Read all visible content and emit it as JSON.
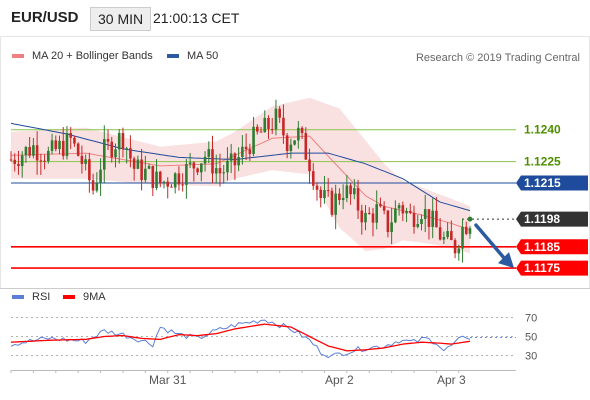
{
  "header": {
    "symbol": "EUR/USD",
    "timeframe": "30 MIN",
    "time": "21:00:13 CET"
  },
  "legend": {
    "bollinger": {
      "label": "MA 20 + Bollinger Bands",
      "color": "#f08080"
    },
    "ma50": {
      "label": "MA 50",
      "color": "#2c5aa0"
    },
    "research": "Research © 2019 Trading Central"
  },
  "rsi_legend": {
    "rsi": {
      "label": "RSI",
      "color": "#5b7fd6"
    },
    "ma": {
      "label": "9MA",
      "color": "#ff0000"
    }
  },
  "colors": {
    "up_candle": "#2e7d32",
    "down_candle": "#c62828",
    "support": "#ff0000",
    "pivot": "#1e4b9b",
    "resistance": "#8bc34a",
    "last_price_badge": "#333333",
    "arrow": "#2c5aa0"
  },
  "chart_data": [
    {
      "type": "candlestick",
      "title": "EUR/USD",
      "ylim": [
        1.1168,
        1.1269
      ],
      "x_ticks": [
        "Mar 31",
        "Apr 2",
        "Apr 3"
      ],
      "levels": [
        {
          "value": 1.124,
          "label": "1.1240",
          "kind": "resistance"
        },
        {
          "value": 1.1225,
          "label": "1.1225",
          "kind": "resistance"
        },
        {
          "value": 1.1215,
          "label": "1.1215",
          "kind": "pivot"
        },
        {
          "value": 1.1198,
          "label": "1.1198",
          "kind": "last"
        },
        {
          "value": 1.1185,
          "label": "1.1185",
          "kind": "support"
        },
        {
          "value": 1.1175,
          "label": "1.1175",
          "kind": "support"
        }
      ],
      "arrow_target": 1.1175,
      "last_price": 1.1198,
      "anchors": [
        [
          0,
          1.1226
        ],
        [
          6,
          1.1232
        ],
        [
          10,
          1.1228
        ],
        [
          16,
          1.1235
        ],
        [
          19,
          1.1225
        ],
        [
          22,
          1.1212
        ],
        [
          25,
          1.123
        ],
        [
          30,
          1.1237
        ],
        [
          33,
          1.1222
        ],
        [
          37,
          1.1219
        ],
        [
          40,
          1.1215
        ],
        [
          44,
          1.1218
        ],
        [
          48,
          1.1222
        ],
        [
          52,
          1.1228
        ],
        [
          56,
          1.122
        ],
        [
          60,
          1.1224
        ],
        [
          64,
          1.1234
        ],
        [
          68,
          1.124
        ],
        [
          71,
          1.1245
        ],
        [
          74,
          1.1235
        ],
        [
          77,
          1.1238
        ],
        [
          80,
          1.1225
        ],
        [
          83,
          1.1208
        ],
        [
          86,
          1.1205
        ],
        [
          89,
          1.1212
        ],
        [
          92,
          1.1207
        ],
        [
          95,
          1.1198
        ],
        [
          98,
          1.1202
        ],
        [
          101,
          1.1195
        ],
        [
          104,
          1.1205
        ],
        [
          107,
          1.1199
        ],
        [
          110,
          1.1203
        ],
        [
          113,
          1.1196
        ],
        [
          116,
          1.1188
        ],
        [
          119,
          1.1185
        ],
        [
          121,
          1.1194
        ],
        [
          123,
          1.1198
        ]
      ],
      "ma20_anchors": [
        [
          0,
          1.1228
        ],
        [
          20,
          1.1229
        ],
        [
          40,
          1.1223
        ],
        [
          55,
          1.1224
        ],
        [
          70,
          1.1236
        ],
        [
          80,
          1.1237
        ],
        [
          88,
          1.1222
        ],
        [
          95,
          1.1209
        ],
        [
          100,
          1.1204
        ],
        [
          110,
          1.12
        ],
        [
          118,
          1.1196
        ],
        [
          123,
          1.1193
        ]
      ],
      "ma50_anchors": [
        [
          0,
          1.1243
        ],
        [
          15,
          1.1238
        ],
        [
          30,
          1.1231
        ],
        [
          45,
          1.1227
        ],
        [
          60,
          1.1226
        ],
        [
          75,
          1.1229
        ],
        [
          85,
          1.1229
        ],
        [
          95,
          1.1224
        ],
        [
          105,
          1.1217
        ],
        [
          115,
          1.1206
        ],
        [
          123,
          1.1202
        ]
      ],
      "bb_width_anchors": [
        [
          0,
          0.0011
        ],
        [
          20,
          0.0012
        ],
        [
          40,
          0.0009
        ],
        [
          60,
          0.0011
        ],
        [
          70,
          0.0015
        ],
        [
          80,
          0.0018
        ],
        [
          88,
          0.0028
        ],
        [
          95,
          0.0026
        ],
        [
          105,
          0.0014
        ],
        [
          115,
          0.0012
        ],
        [
          123,
          0.0011
        ]
      ]
    },
    {
      "type": "line",
      "title": "RSI",
      "ylim": [
        20,
        80
      ],
      "y_ticks": [
        30,
        50,
        70
      ],
      "series": [
        {
          "name": "RSI",
          "points": [
            [
              0,
              42
            ],
            [
              10,
              48
            ],
            [
              20,
              45
            ],
            [
              25,
              56
            ],
            [
              30,
              52
            ],
            [
              35,
              46
            ],
            [
              38,
              42
            ],
            [
              40,
              60
            ],
            [
              45,
              52
            ],
            [
              50,
              48
            ],
            [
              55,
              56
            ],
            [
              60,
              62
            ],
            [
              68,
              68
            ],
            [
              75,
              58
            ],
            [
              80,
              46
            ],
            [
              83,
              34
            ],
            [
              86,
              29
            ],
            [
              89,
              33
            ],
            [
              95,
              38
            ],
            [
              100,
              40
            ],
            [
              104,
              46
            ],
            [
              108,
              44
            ],
            [
              111,
              48
            ],
            [
              114,
              44
            ],
            [
              116,
              35
            ],
            [
              118,
              40
            ],
            [
              120,
              46
            ],
            [
              122,
              50
            ],
            [
              123,
              49
            ]
          ]
        },
        {
          "name": "9MA",
          "points": [
            [
              0,
              44
            ],
            [
              10,
              46
            ],
            [
              20,
              47
            ],
            [
              25,
              50
            ],
            [
              30,
              51
            ],
            [
              35,
              48
            ],
            [
              40,
              47
            ],
            [
              45,
              52
            ],
            [
              50,
              51
            ],
            [
              55,
              53
            ],
            [
              60,
              58
            ],
            [
              68,
              63
            ],
            [
              75,
              60
            ],
            [
              80,
              50
            ],
            [
              85,
              40
            ],
            [
              90,
              35
            ],
            [
              95,
              36
            ],
            [
              100,
              38
            ],
            [
              105,
              42
            ],
            [
              110,
              44
            ],
            [
              115,
              43
            ],
            [
              118,
              42
            ],
            [
              123,
              45
            ]
          ]
        }
      ]
    }
  ]
}
